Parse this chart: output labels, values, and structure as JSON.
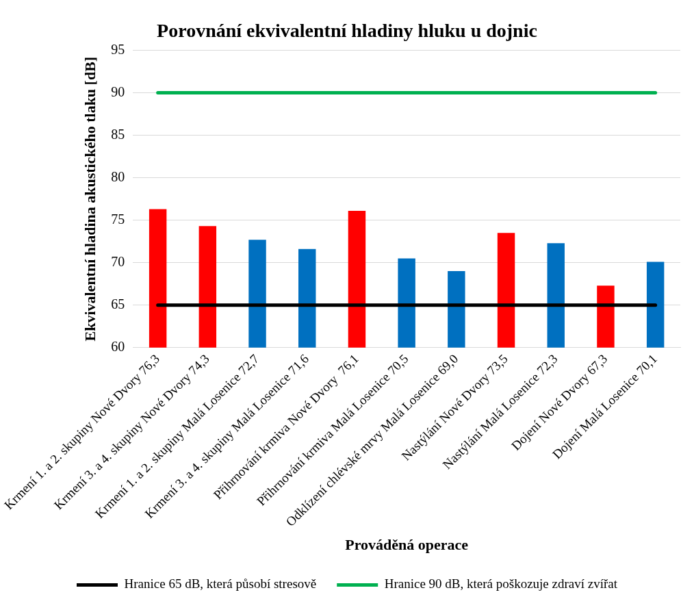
{
  "chart_data": {
    "type": "bar",
    "title": "Porovnání ekvivalentní hladiny hluku u dojnic",
    "xlabel": "Prováděná operace",
    "ylabel": "Ekvivalentní hladina akustického tlaku [dB]",
    "categories": [
      "Krmení 1. a 2. skupiny Nové Dvory 76,3",
      "Krmení 3. a 4. skupiny Nové Dvory 74,3",
      "Krmení 1. a 2. skupiny Malá Losenice 72,7",
      "Krmení 3. a 4. skupiny Malá Losenice 71,6",
      "Přihrnování krmiva Nové Dvory  76,1",
      "Přihrnování krmiva Malá Losenice 70,5",
      "Odklízení chlévské mrvy Malá Losenice 69,0",
      "Nastýlání Nové Dvory 73,5",
      "Nastýlání Malá Losenice 72,3",
      "Dojení Nové Dvory 67,3",
      "Dojení Malá Losenice 70,1"
    ],
    "series": [
      {
        "colors": [
          "#ff0000",
          "#ff0000",
          "#0070c0",
          "#0070c0",
          "#ff0000",
          "#0070c0",
          "#0070c0",
          "#ff0000",
          "#0070c0",
          "#ff0000",
          "#0070c0"
        ],
        "values": [
          76.3,
          74.3,
          72.7,
          71.6,
          76.1,
          70.5,
          69.0,
          73.5,
          72.3,
          67.3,
          70.1
        ]
      },
      {
        "type": "line",
        "name": "Hranice 65 dB, která působí stresově",
        "color": "#000000",
        "values": [
          65,
          65,
          65,
          65,
          65,
          65,
          65,
          65,
          65,
          65,
          65
        ]
      },
      {
        "type": "line",
        "name": "Hranice 90 dB, která poškozuje zdraví zvířat",
        "color": "#00b050",
        "values": [
          90,
          90,
          90,
          90,
          90,
          90,
          90,
          90,
          90,
          90,
          90
        ]
      }
    ],
    "ylim": [
      60,
      95
    ],
    "yticks": [
      60,
      65,
      70,
      75,
      80,
      85,
      90,
      95
    ],
    "grid": "y",
    "legend": "bottom",
    "marker": "none"
  }
}
